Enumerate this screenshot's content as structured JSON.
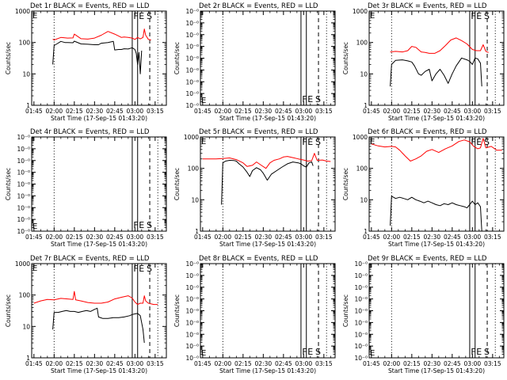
{
  "colors": {
    "events": "#000000",
    "lld": "#ff0000",
    "axes": "#000000",
    "background": "#ffffff"
  },
  "x_tick_labels": [
    "01:45",
    "02:00",
    "02:15",
    "02:30",
    "02:45",
    "03:00",
    "03:15"
  ],
  "x_axis_label": "Start Time (17-Sep-15 01:43:20)",
  "y_axis_label": "Counts/sec",
  "marker_labels": [
    "F",
    "E",
    "S"
  ],
  "chart_data": [
    {
      "type": "line",
      "id": "p1",
      "title": "Det 1r BLACK = Events, RED = LLD",
      "y_scale": "log",
      "ylim": [
        1,
        1000
      ],
      "y_tick_labels": [
        "1",
        "10",
        "100",
        "1000"
      ],
      "xlim": [
        "01:43:20",
        "03:23:20"
      ],
      "vlines": {
        "dotted": [
          "02:00",
          "03:17"
        ],
        "solid": [
          "02:58",
          "03:02"
        ],
        "dashed": [
          "03:11"
        ]
      },
      "series": [
        {
          "key": "lld",
          "x": [
            "01:59",
            "02:00",
            "02:05",
            "02:10",
            "02:14",
            "02:15",
            "02:20",
            "02:25",
            "02:30",
            "02:35",
            "02:40",
            "02:45",
            "02:48",
            "02:50",
            "02:52",
            "02:55",
            "02:58",
            "03:00",
            "03:02",
            "03:04",
            "03:06",
            "03:07",
            "03:08",
            "03:10",
            "03:12"
          ],
          "y": [
            128,
            120,
            145,
            138,
            140,
            185,
            132,
            128,
            138,
            170,
            225,
            185,
            160,
            145,
            150,
            145,
            138,
            125,
            145,
            130,
            145,
            270,
            170,
            125,
            120
          ]
        },
        {
          "key": "events",
          "x": [
            "01:59",
            "02:00",
            "02:02",
            "02:05",
            "02:08",
            "02:10",
            "02:14",
            "02:15",
            "02:20",
            "02:25",
            "02:30",
            "02:33",
            "02:35",
            "02:40",
            "02:44",
            "02:45",
            "02:48",
            "02:50",
            "02:52",
            "02:55",
            "02:58",
            "03:00",
            "03:01",
            "03:02",
            "03:03",
            "03:04",
            "03:05"
          ],
          "y": [
            20,
            80,
            90,
            108,
            100,
            100,
            98,
            110,
            90,
            88,
            85,
            85,
            95,
            100,
            108,
            58,
            60,
            60,
            63,
            62,
            68,
            60,
            45,
            20,
            48,
            10,
            55
          ]
        }
      ]
    },
    {
      "type": "line",
      "id": "p2",
      "title": "Det 2r BLACK = Events, RED = LLD",
      "y_scale": "log",
      "ylim": [
        1,
        1000
      ],
      "y_tick_labels": [
        "10⁻⁰",
        "10⁻⁰",
        "10⁻⁰",
        "10⁻⁰",
        "10⁻⁰",
        "10⁻⁰",
        "10⁻⁰",
        "10⁻⁰",
        "10⁻⁰"
      ],
      "xlim": [
        "01:43:20",
        "03:23:20"
      ],
      "vlines": {
        "dotted": [
          "02:00",
          "03:17"
        ],
        "solid": [
          "02:58",
          "03:02"
        ],
        "dashed": [
          "03:11"
        ]
      },
      "series": []
    },
    {
      "type": "line",
      "id": "p3",
      "title": "Det 3r BLACK = Events, RED = LLD",
      "y_scale": "log",
      "ylim": [
        1,
        1000
      ],
      "y_tick_labels": [
        "1",
        "10",
        "100",
        "1000"
      ],
      "xlim": [
        "01:43:20",
        "03:23:20"
      ],
      "vlines": {
        "dotted": [
          "02:00",
          "03:17"
        ],
        "solid": [
          "02:58",
          "03:02"
        ],
        "dashed": [
          "03:11"
        ]
      },
      "series": [
        {
          "key": "lld",
          "x": [
            "01:59",
            "02:03",
            "02:08",
            "02:12",
            "02:15",
            "02:18",
            "02:22",
            "02:25",
            "02:28",
            "02:32",
            "02:36",
            "02:40",
            "02:44",
            "02:48",
            "02:52",
            "02:56",
            "03:00",
            "03:03",
            "03:06",
            "03:08",
            "03:10",
            "03:12"
          ],
          "y": [
            50,
            52,
            50,
            55,
            75,
            70,
            50,
            48,
            45,
            45,
            55,
            80,
            120,
            140,
            115,
            90,
            60,
            55,
            55,
            85,
            52,
            48
          ]
        },
        {
          "key": "events",
          "x": [
            "01:59",
            "02:00",
            "02:03",
            "02:08",
            "02:12",
            "02:15",
            "02:17",
            "02:20",
            "02:22",
            "02:25",
            "02:28",
            "02:30",
            "02:33",
            "02:36",
            "02:39",
            "02:42",
            "02:45",
            "02:48",
            "02:52",
            "02:56",
            "02:58",
            "03:00",
            "03:02",
            "03:04",
            "03:06",
            "03:07"
          ],
          "y": [
            4,
            20,
            27,
            28,
            26,
            24,
            18,
            10,
            9,
            12,
            14,
            6,
            10,
            14,
            9,
            5,
            10,
            18,
            32,
            28,
            25,
            20,
            32,
            30,
            22,
            4
          ]
        }
      ]
    },
    {
      "type": "line",
      "id": "p4",
      "title": "Det 4r BLACK = Events, RED = LLD",
      "y_scale": "log",
      "ylim": [
        1,
        1000
      ],
      "y_tick_labels": [
        "10⁻⁰",
        "10⁻⁰",
        "10⁻⁰",
        "10⁻⁰",
        "10⁻⁰",
        "10⁻⁰",
        "10⁻⁰",
        "10⁻⁰",
        "10⁻⁰"
      ],
      "xlim": [
        "01:43:20",
        "03:23:20"
      ],
      "vlines": {
        "dotted": [
          "02:00",
          "03:17"
        ],
        "solid": [
          "02:58",
          "03:02"
        ],
        "dashed": [
          "03:11"
        ]
      },
      "series": []
    },
    {
      "type": "line",
      "id": "p5",
      "title": "Det 5r BLACK = Events, RED = LLD",
      "y_scale": "log",
      "ylim": [
        1,
        1000
      ],
      "y_tick_labels": [
        "1",
        "10",
        "100",
        "1000"
      ],
      "xlim": [
        "01:43:20",
        "03:23:20"
      ],
      "vlines": {
        "dotted": [
          "02:00",
          "03:17"
        ],
        "solid": [
          "02:58",
          "03:02"
        ],
        "dashed": [
          "03:11"
        ]
      },
      "series": [
        {
          "key": "lld",
          "x": [
            "01:45",
            "01:55",
            "02:00",
            "02:05",
            "02:10",
            "02:15",
            "02:18",
            "02:22",
            "02:25",
            "02:28",
            "02:32",
            "02:35",
            "02:38",
            "02:42",
            "02:45",
            "02:48",
            "02:52",
            "02:56",
            "03:00",
            "03:03",
            "03:06",
            "03:08",
            "03:10",
            "03:14",
            "03:17",
            "03:20"
          ],
          "y": [
            200,
            200,
            205,
            215,
            190,
            150,
            115,
            125,
            160,
            130,
            100,
            150,
            180,
            200,
            230,
            240,
            220,
            200,
            185,
            170,
            175,
            300,
            180,
            185,
            170,
            165
          ]
        },
        {
          "key": "events",
          "x": [
            "01:59",
            "02:00",
            "02:02",
            "02:05",
            "02:08",
            "02:10",
            "02:12",
            "02:15",
            "02:18",
            "02:20",
            "02:22",
            "02:25",
            "02:28",
            "02:30",
            "02:33",
            "02:36",
            "02:40",
            "02:44",
            "02:48",
            "02:52",
            "02:56",
            "02:58",
            "03:00",
            "03:02",
            "03:04",
            "03:06",
            "03:07"
          ],
          "y": [
            7,
            150,
            170,
            180,
            178,
            170,
            140,
            110,
            75,
            55,
            85,
            105,
            90,
            70,
            42,
            65,
            85,
            110,
            140,
            160,
            150,
            140,
            120,
            110,
            150,
            160,
            120
          ]
        }
      ]
    },
    {
      "type": "line",
      "id": "p6",
      "title": "Det 6r BLACK = Events, RED = LLD",
      "y_scale": "log",
      "ylim": [
        1,
        1000
      ],
      "y_tick_labels": [
        "1",
        "10",
        "100",
        "1000"
      ],
      "xlim": [
        "01:43:20",
        "03:23:20"
      ],
      "vlines": {
        "dotted": [
          "02:00",
          "03:17"
        ],
        "solid": [
          "02:58",
          "03:02"
        ],
        "dashed": [
          "03:11"
        ]
      },
      "series": [
        {
          "key": "lld",
          "x": [
            "01:45",
            "01:50",
            "01:55",
            "02:00",
            "02:03",
            "02:06",
            "02:10",
            "02:14",
            "02:18",
            "02:22",
            "02:26",
            "02:30",
            "02:35",
            "02:40",
            "02:45",
            "02:50",
            "02:54",
            "02:58",
            "03:01",
            "03:04",
            "03:06",
            "03:08",
            "03:10",
            "03:14",
            "03:18",
            "03:22"
          ],
          "y": [
            600,
            520,
            480,
            500,
            480,
            380,
            250,
            170,
            200,
            250,
            350,
            400,
            320,
            420,
            520,
            720,
            800,
            700,
            500,
            420,
            450,
            900,
            450,
            500,
            380,
            380
          ]
        },
        {
          "key": "events",
          "x": [
            "01:59",
            "02:00",
            "02:03",
            "02:06",
            "02:09",
            "02:12",
            "02:15",
            "02:18",
            "02:21",
            "02:24",
            "02:27",
            "02:30",
            "02:33",
            "02:36",
            "02:39",
            "02:42",
            "02:45",
            "02:48",
            "02:51",
            "02:54",
            "02:56",
            "02:58",
            "03:00",
            "03:02",
            "03:04",
            "03:06",
            "03:07"
          ],
          "y": [
            1.5,
            13,
            11,
            12,
            11,
            10,
            12,
            10,
            9,
            8,
            9,
            8,
            7,
            6.5,
            7.5,
            7,
            8,
            7,
            6.5,
            6,
            5.5,
            7,
            9,
            7,
            8,
            6,
            1
          ]
        }
      ]
    },
    {
      "type": "line",
      "id": "p7",
      "title": "Det 7r BLACK = Events, RED = LLD",
      "y_scale": "log",
      "ylim": [
        1,
        1000
      ],
      "y_tick_labels": [
        "1",
        "10",
        "100",
        "1000"
      ],
      "xlim": [
        "01:43:20",
        "03:23:20"
      ],
      "vlines": {
        "dotted": [
          "02:00",
          "03:17"
        ],
        "solid": [
          "02:58",
          "03:02"
        ],
        "dashed": [
          "03:11"
        ]
      },
      "series": [
        {
          "key": "lld",
          "x": [
            "01:45",
            "01:50",
            "01:55",
            "02:00",
            "02:05",
            "02:10",
            "02:14",
            "02:15",
            "02:16",
            "02:20",
            "02:25",
            "02:30",
            "02:35",
            "02:40",
            "02:45",
            "02:50",
            "02:55",
            "02:58",
            "03:00",
            "03:02",
            "03:04",
            "03:06",
            "03:07",
            "03:08",
            "03:10",
            "03:14",
            "03:17"
          ],
          "y": [
            55,
            65,
            72,
            70,
            78,
            75,
            72,
            130,
            70,
            65,
            58,
            55,
            55,
            60,
            75,
            85,
            95,
            80,
            60,
            50,
            55,
            55,
            95,
            65,
            55,
            50,
            50
          ]
        },
        {
          "key": "events",
          "x": [
            "01:59",
            "02:00",
            "02:03",
            "02:06",
            "02:09",
            "02:12",
            "02:15",
            "02:18",
            "02:21",
            "02:24",
            "02:27",
            "02:30",
            "02:32",
            "02:33",
            "02:36",
            "02:40",
            "02:44",
            "02:48",
            "02:52",
            "02:56",
            "02:58",
            "03:00",
            "03:02",
            "03:04",
            "03:06",
            "03:07"
          ],
          "y": [
            8,
            28,
            28,
            30,
            32,
            30,
            30,
            28,
            30,
            32,
            30,
            35,
            38,
            20,
            18,
            18,
            19,
            19,
            20,
            22,
            24,
            25,
            26,
            22,
            8,
            3
          ]
        }
      ]
    },
    {
      "type": "line",
      "id": "p8",
      "title": "Det 8r BLACK = Events, RED = LLD",
      "y_scale": "log",
      "ylim": [
        1,
        1000
      ],
      "y_tick_labels": [
        "10⁻⁰",
        "10⁻⁰",
        "10⁻⁰",
        "10⁻⁰",
        "10⁻⁰",
        "10⁻⁰",
        "10⁻⁰",
        "10⁻⁰",
        "10⁻⁰"
      ],
      "xlim": [
        "01:43:20",
        "03:23:20"
      ],
      "vlines": {
        "dotted": [
          "02:00",
          "03:17"
        ],
        "solid": [
          "02:58",
          "03:02"
        ],
        "dashed": [
          "03:11"
        ]
      },
      "series": []
    },
    {
      "type": "line",
      "id": "p9",
      "title": "Det 9r BLACK = Events, RED = LLD",
      "y_scale": "log",
      "ylim": [
        1,
        1000
      ],
      "y_tick_labels": [
        "10⁻⁰",
        "10⁻⁰",
        "10⁻⁰",
        "10⁻⁰",
        "10⁻⁰",
        "10⁻⁰",
        "10⁻⁰",
        "10⁻⁰",
        "10⁻⁰"
      ],
      "xlim": [
        "01:43:20",
        "03:23:20"
      ],
      "vlines": {
        "dotted": [
          "02:00",
          "03:17"
        ],
        "solid": [
          "02:58",
          "03:02"
        ],
        "dashed": [
          "03:11"
        ]
      },
      "series": []
    }
  ]
}
